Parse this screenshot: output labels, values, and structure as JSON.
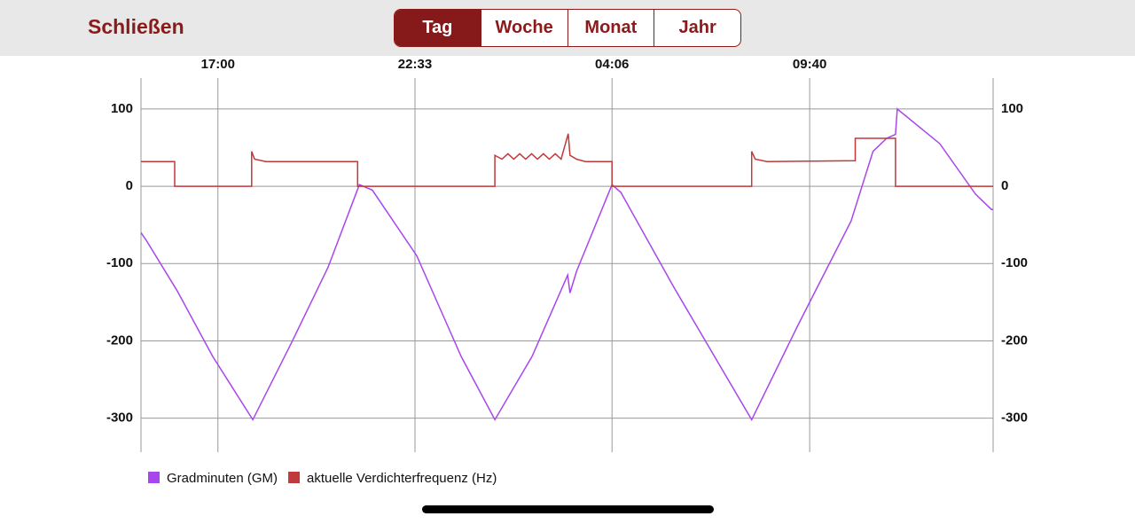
{
  "header": {
    "close": "Schließen",
    "tabs": [
      "Tag",
      "Woche",
      "Monat",
      "Jahr"
    ],
    "selected_tab": "Tag"
  },
  "chart_data": {
    "type": "line",
    "xlim": [
      0,
      1440
    ],
    "xticks": [
      {
        "value": 130,
        "label": "17:00"
      },
      {
        "value": 463,
        "label": "22:33"
      },
      {
        "value": 796,
        "label": "04:06"
      },
      {
        "value": 1130,
        "label": "09:40"
      }
    ],
    "ylim": [
      -344,
      140
    ],
    "yticks": [
      100,
      0,
      -100,
      -200,
      -300
    ],
    "grid": true,
    "series": [
      {
        "name": "Gradminuten (GM)",
        "color": "#a846ee",
        "x": [
          0,
          9,
          61,
          121,
          189,
          256,
          316,
          369,
          391,
          466,
          541,
          598,
          661,
          721,
          725,
          736,
          796,
          811,
          900,
          1032,
          1110,
          1200,
          1237,
          1260,
          1275,
          1278,
          1350,
          1410,
          1437,
          1440
        ],
        "values": [
          -60,
          -70,
          -135,
          -220,
          -302,
          -200,
          -105,
          2,
          -5,
          -90,
          -220,
          -302,
          -220,
          -115,
          -138,
          -110,
          2,
          -8,
          -130,
          -302,
          -180,
          -45,
          45,
          62,
          67,
          100,
          55,
          -10,
          -30,
          -30
        ]
      },
      {
        "name": "aktuelle Verdichterfrequenz (Hz)",
        "color": "#c0393b",
        "x": [
          0,
          57,
          57,
          187,
          187,
          192,
          211,
          366,
          366,
          598,
          598,
          610,
          620,
          630,
          640,
          650,
          660,
          670,
          680,
          690,
          700,
          710,
          722,
          725,
          736,
          751,
          796,
          796,
          1032,
          1032,
          1038,
          1058,
          1207,
          1207,
          1275,
          1275,
          1440
        ],
        "values": [
          32,
          32,
          0,
          0,
          45,
          35,
          32,
          32,
          0,
          0,
          40,
          35,
          42,
          35,
          42,
          35,
          42,
          35,
          42,
          35,
          42,
          35,
          68,
          40,
          35,
          32,
          32,
          0,
          0,
          45,
          35,
          32,
          33,
          62,
          62,
          0,
          0
        ]
      }
    ]
  }
}
